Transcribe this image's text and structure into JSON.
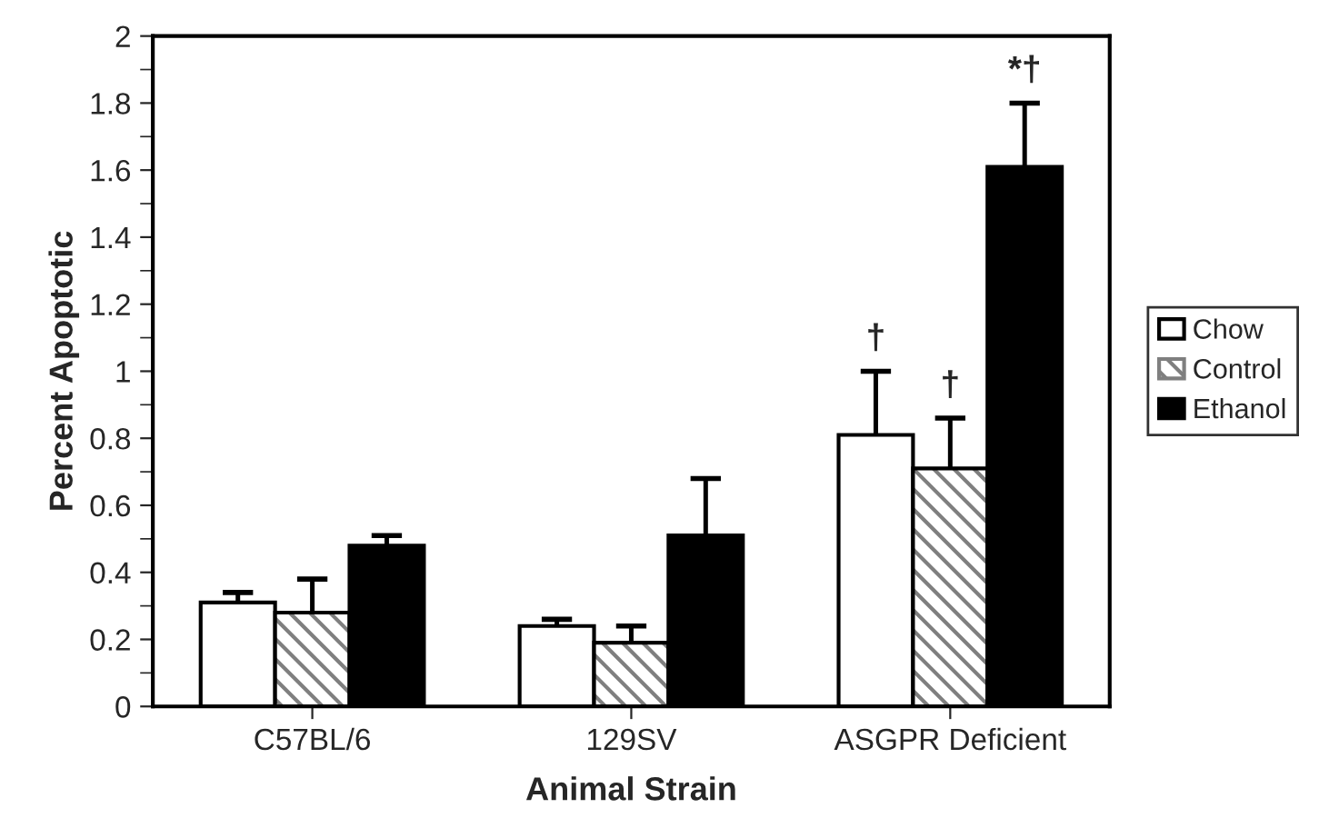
{
  "chart_data": {
    "type": "bar",
    "xlabel": "Animal Strain",
    "ylabel": "Percent Apoptotic",
    "categories": [
      "C57BL/6",
      "129SV",
      "ASGPR Deficient"
    ],
    "series": [
      {
        "name": "Chow",
        "color": "#ffffff",
        "values": [
          0.31,
          0.24,
          0.81
        ],
        "errors": [
          0.03,
          0.02,
          0.19
        ]
      },
      {
        "name": "Control",
        "color": "#7f7f7f",
        "values": [
          0.28,
          0.19,
          0.71
        ],
        "errors": [
          0.1,
          0.05,
          0.15
        ]
      },
      {
        "name": "Ethanol",
        "color": "#000000",
        "values": [
          0.48,
          0.51,
          1.61
        ],
        "errors": [
          0.03,
          0.17,
          0.19
        ]
      }
    ],
    "ylim": [
      0,
      2
    ],
    "yticks": [
      0,
      0.2,
      0.4,
      0.6,
      0.8,
      1,
      1.2,
      1.4,
      1.6,
      1.8,
      2
    ],
    "annotations": [
      "†",
      "†",
      "*†"
    ],
    "grid": false,
    "legend": "right"
  }
}
